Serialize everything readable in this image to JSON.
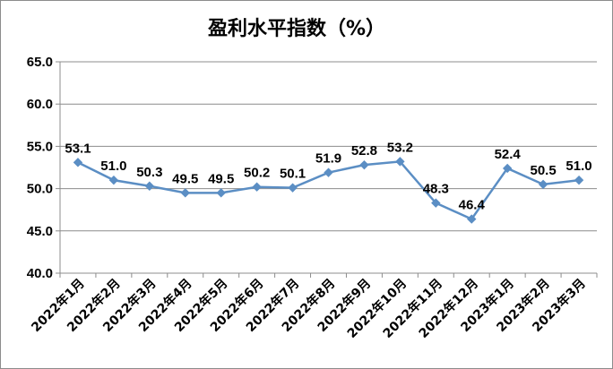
{
  "chart_data": {
    "type": "line",
    "title": "盈利水平指数（%）",
    "categories": [
      "2022年1月",
      "2022年2月",
      "2022年3月",
      "2022年4月",
      "2022年5月",
      "2022年6月",
      "2022年7月",
      "2022年8月",
      "2022年9月",
      "2022年10月",
      "2022年11月",
      "2022年12月",
      "2023年1月",
      "2023年2月",
      "2023年3月"
    ],
    "series": [
      {
        "values": [
          53.1,
          51.0,
          50.3,
          49.5,
          49.5,
          50.2,
          50.1,
          51.9,
          52.8,
          53.2,
          48.3,
          46.4,
          52.4,
          50.5,
          51.0
        ]
      }
    ],
    "data_labels": [
      "53.1",
      "51.0",
      "50.3",
      "49.5",
      "49.5",
      "50.2",
      "50.1",
      "51.9",
      "52.8",
      "53.2",
      "48.3",
      "46.4",
      "52.4",
      "50.5",
      "51.0"
    ],
    "y_ticks": [
      "40.0",
      "45.0",
      "50.0",
      "55.0",
      "60.0",
      "65.0"
    ],
    "ylim": [
      40,
      65
    ],
    "grid": true,
    "legend": "none",
    "line_color": "#5b8ec4",
    "marker": "diamond"
  }
}
